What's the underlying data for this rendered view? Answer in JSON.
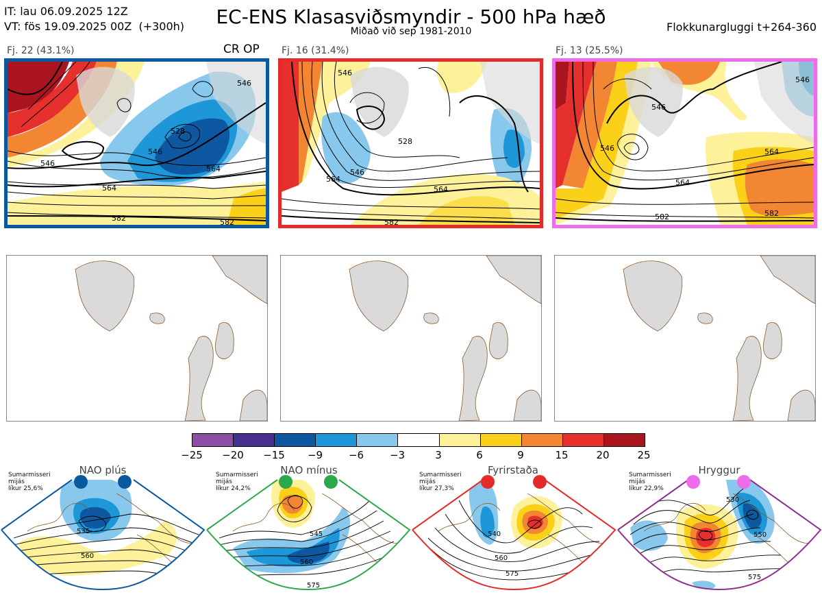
{
  "header": {
    "it_line": "IT: lau 06.09.2025 12Z",
    "vt_line": "VT: fös 19.09.2025 00Z  (+300h)",
    "title": "EC-ENS Klasasviðsmyndir - 500 hPa hæð",
    "subtitle": "Miðað við sep 1981-2010",
    "window": "Flokkunargluggi t+264-360"
  },
  "clusters": [
    {
      "label": "Fj. 22 (43.1%)",
      "tag": "CR OP",
      "border_color": "#0a58a0",
      "contours": [
        "546",
        "546",
        "546",
        "564",
        "564",
        "582",
        "582",
        "528"
      ]
    },
    {
      "label": "Fj. 16 (31.4%)",
      "tag": "",
      "border_color": "#e42a2a",
      "contours": [
        "546",
        "546",
        "528",
        "564",
        "564",
        "582"
      ]
    },
    {
      "label": "Fj. 13 (25.5%)",
      "tag": "",
      "border_color": "#ee6cea",
      "contours": [
        "546",
        "546",
        "546",
        "564",
        "564",
        "582",
        "582"
      ]
    }
  ],
  "colorbar": {
    "ticks": [
      "−25",
      "−20",
      "−15",
      "−9",
      "−6",
      "−3",
      "3",
      "6",
      "9",
      "15",
      "20",
      "25"
    ],
    "colors": [
      "#8c4fa3",
      "#47308f",
      "#0d58a0",
      "#1d97d8",
      "#88c8ec",
      "#ffffff",
      "#fdf19a",
      "#fbd019",
      "#f38633",
      "#e5302d",
      "#ab1520"
    ]
  },
  "regimes": [
    {
      "name": "NAO plús",
      "color": "#0a58a0",
      "info": [
        "Sumarmisseri",
        "mijás",
        "líkur 25,6%"
      ],
      "contours": [
        "535",
        "560"
      ]
    },
    {
      "name": "NAO mínus",
      "color": "#2ba84a",
      "info": [
        "Sumarmisseri",
        "mijás",
        "líkur 24,2%"
      ],
      "contours": [
        "545",
        "560",
        "575"
      ]
    },
    {
      "name": "Fyrirstaða",
      "color": "#e42a2a",
      "info": [
        "Sumarmisseri",
        "mijás",
        "líkur 27,3%"
      ],
      "contours": [
        "540",
        "560",
        "575"
      ]
    },
    {
      "name": "Hryggur",
      "color": "#ee6cea",
      "info": [
        "Sumarmisseri",
        "mijás",
        "líkur 22,9%"
      ],
      "contours": [
        "530",
        "550",
        "575"
      ]
    }
  ]
}
